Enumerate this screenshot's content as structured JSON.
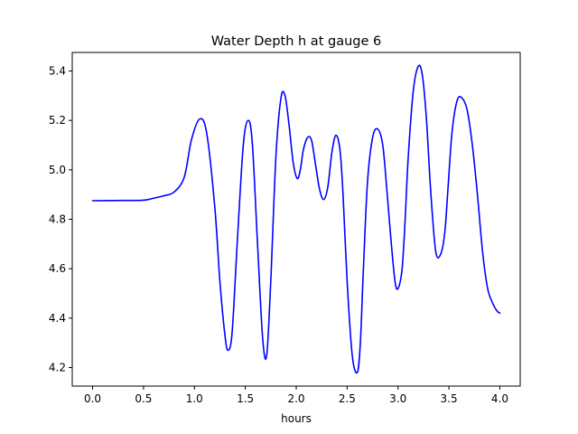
{
  "chart_data": {
    "type": "line",
    "title": "Water Depth h at gauge 6",
    "xlabel": "hours",
    "ylabel": "",
    "xlim": [
      -0.2,
      4.2
    ],
    "ylim": [
      4.125,
      5.475
    ],
    "xticks": [
      0.0,
      0.5,
      1.0,
      1.5,
      2.0,
      2.5,
      3.0,
      3.5,
      4.0
    ],
    "xtick_labels": [
      "0.0",
      "0.5",
      "1.0",
      "1.5",
      "2.0",
      "2.5",
      "3.0",
      "3.5",
      "4.0"
    ],
    "yticks": [
      4.2,
      4.4,
      4.6,
      4.8,
      5.0,
      5.2,
      5.4
    ],
    "ytick_labels": [
      "4.2",
      "4.4",
      "4.6",
      "4.8",
      "5.0",
      "5.2",
      "5.4"
    ],
    "grid": false,
    "series": [
      {
        "color": "#0000ff",
        "x": [
          0.0,
          0.3,
          0.5,
          0.6,
          0.7,
          0.8,
          0.9,
          0.97,
          1.05,
          1.12,
          1.2,
          1.25,
          1.3,
          1.33,
          1.37,
          1.42,
          1.48,
          1.53,
          1.57,
          1.62,
          1.67,
          1.71,
          1.75,
          1.8,
          1.85,
          1.89,
          1.93,
          1.97,
          2.01,
          2.04,
          2.07,
          2.11,
          2.15,
          2.19,
          2.23,
          2.27,
          2.31,
          2.35,
          2.39,
          2.43,
          2.46,
          2.5,
          2.55,
          2.6,
          2.63,
          2.66,
          2.7,
          2.75,
          2.8,
          2.85,
          2.89,
          2.93,
          2.97,
          3.0,
          3.04,
          3.07,
          3.1,
          3.15,
          3.2,
          3.24,
          3.28,
          3.32,
          3.37,
          3.42,
          3.46,
          3.49,
          3.53,
          3.58,
          3.63,
          3.68,
          3.73,
          3.78,
          3.83,
          3.88,
          3.93,
          3.97,
          4.0
        ],
        "y": [
          4.875,
          4.876,
          4.877,
          4.885,
          4.895,
          4.91,
          4.97,
          5.12,
          5.205,
          5.15,
          4.85,
          4.55,
          4.33,
          4.27,
          4.34,
          4.7,
          5.1,
          5.2,
          5.1,
          4.7,
          4.32,
          4.25,
          4.55,
          5.05,
          5.29,
          5.3,
          5.18,
          5.03,
          4.965,
          5.0,
          5.08,
          5.13,
          5.12,
          5.02,
          4.92,
          4.88,
          4.93,
          5.07,
          5.14,
          5.08,
          4.9,
          4.55,
          4.25,
          4.18,
          4.3,
          4.6,
          4.95,
          5.13,
          5.165,
          5.1,
          4.92,
          4.72,
          4.55,
          4.52,
          4.6,
          4.8,
          5.05,
          5.32,
          5.42,
          5.38,
          5.2,
          4.92,
          4.67,
          4.66,
          4.75,
          4.92,
          5.15,
          5.28,
          5.29,
          5.24,
          5.1,
          4.9,
          4.67,
          4.52,
          4.46,
          4.43,
          4.42
        ]
      }
    ]
  }
}
